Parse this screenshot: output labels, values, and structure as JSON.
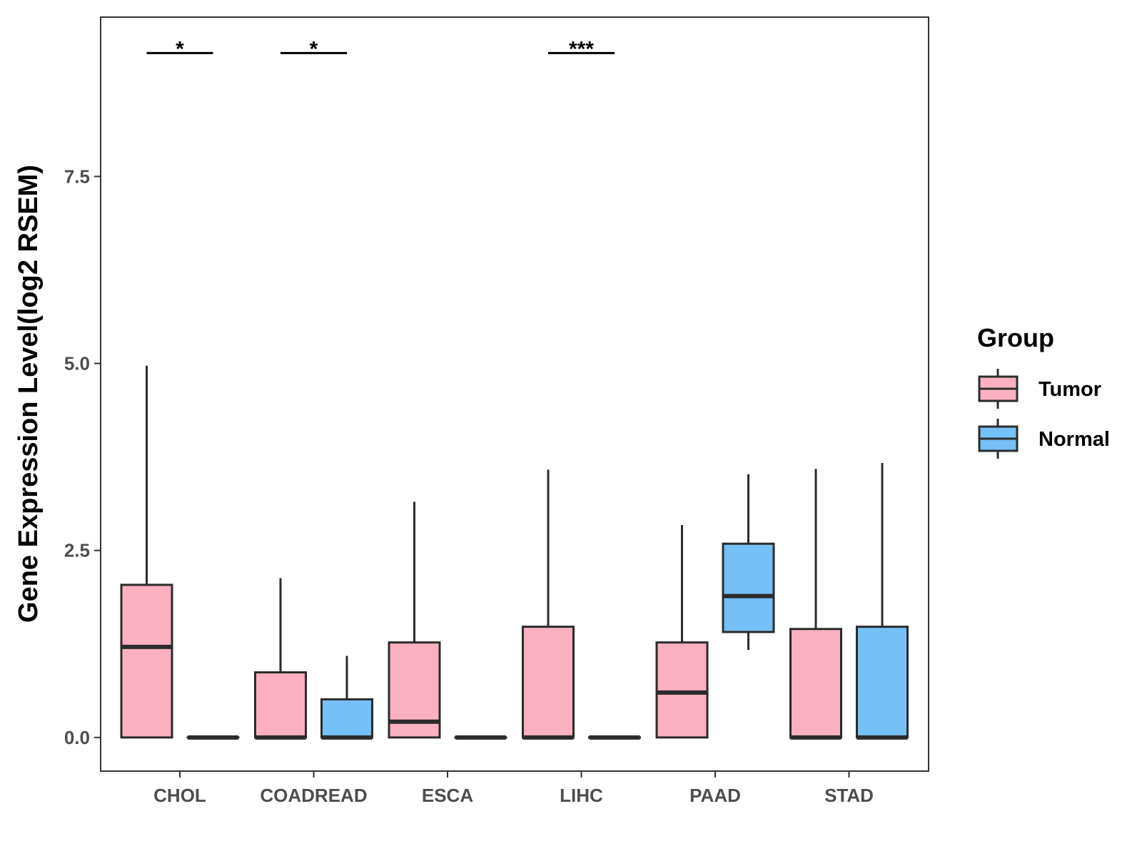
{
  "chart_data": {
    "type": "boxplot",
    "title": "",
    "xlabel": "",
    "ylabel": "Gene Expression Level(log2 RSEM)",
    "ylim": [
      -0.45,
      9.63
    ],
    "yticks": [
      0.0,
      2.5,
      5.0,
      7.5
    ],
    "ytick_labels": [
      "0.0",
      "2.5",
      "5.0",
      "7.5"
    ],
    "categories": [
      "CHOL",
      "COADREAD",
      "ESCA",
      "LIHC",
      "PAAD",
      "STAD"
    ],
    "legend": {
      "title": "Group",
      "position": "right",
      "entries": [
        {
          "name": "Tumor",
          "color": "#FBB1C1"
        },
        {
          "name": "Normal",
          "color": "#75C0F7"
        }
      ]
    },
    "series": [
      {
        "name": "Tumor",
        "color": "#FBB1C1",
        "boxes": [
          {
            "category": "CHOL",
            "lower_whisker": 0.0,
            "q1": 0.0,
            "median": 1.21,
            "q3": 2.04,
            "upper_whisker": 4.97
          },
          {
            "category": "COADREAD",
            "lower_whisker": 0.0,
            "q1": 0.0,
            "median": 0.0,
            "q3": 0.87,
            "upper_whisker": 2.13
          },
          {
            "category": "ESCA",
            "lower_whisker": 0.0,
            "q1": 0.0,
            "median": 0.21,
            "q3": 1.27,
            "upper_whisker": 3.15
          },
          {
            "category": "LIHC",
            "lower_whisker": 0.0,
            "q1": 0.0,
            "median": 0.0,
            "q3": 1.48,
            "upper_whisker": 3.58
          },
          {
            "category": "PAAD",
            "lower_whisker": 0.0,
            "q1": 0.0,
            "median": 0.6,
            "q3": 1.27,
            "upper_whisker": 2.84
          },
          {
            "category": "STAD",
            "lower_whisker": 0.0,
            "q1": 0.0,
            "median": 0.0,
            "q3": 1.45,
            "upper_whisker": 3.59
          }
        ]
      },
      {
        "name": "Normal",
        "color": "#75C0F7",
        "boxes": [
          {
            "category": "CHOL",
            "lower_whisker": 0.0,
            "q1": 0.0,
            "median": 0.0,
            "q3": 0.0,
            "upper_whisker": 0.0
          },
          {
            "category": "COADREAD",
            "lower_whisker": 0.0,
            "q1": 0.0,
            "median": 0.0,
            "q3": 0.51,
            "upper_whisker": 1.09
          },
          {
            "category": "ESCA",
            "lower_whisker": 0.0,
            "q1": 0.0,
            "median": 0.0,
            "q3": 0.0,
            "upper_whisker": 0.0
          },
          {
            "category": "LIHC",
            "lower_whisker": 0.0,
            "q1": 0.0,
            "median": 0.0,
            "q3": 0.0,
            "upper_whisker": 0.0
          },
          {
            "category": "PAAD",
            "lower_whisker": 1.17,
            "q1": 1.41,
            "median": 1.89,
            "q3": 2.59,
            "upper_whisker": 3.52
          },
          {
            "category": "STAD",
            "lower_whisker": 0.0,
            "q1": 0.0,
            "median": 0.0,
            "q3": 1.48,
            "upper_whisker": 3.67
          }
        ]
      }
    ],
    "significance": [
      {
        "category": "CHOL",
        "label": "*",
        "y": 9.15
      },
      {
        "category": "COADREAD",
        "label": "*",
        "y": 9.15
      },
      {
        "category": "LIHC",
        "label": "***",
        "y": 9.15
      }
    ]
  }
}
